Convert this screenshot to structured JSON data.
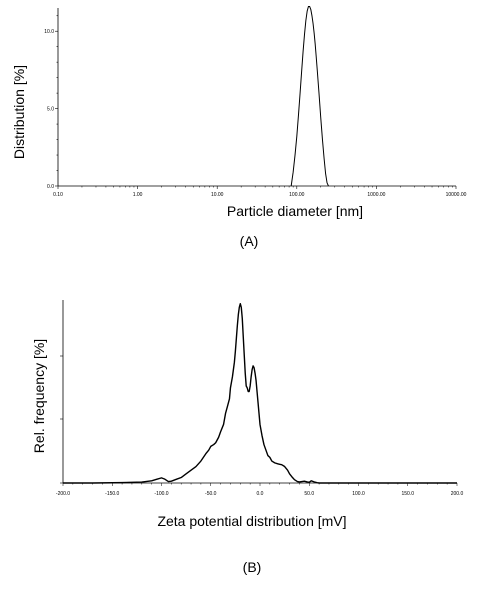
{
  "chart_data": [
    {
      "type": "line",
      "panel_label": "(A)",
      "xlabel": "Particle diameter [nm]",
      "ylabel": "Distribution [%]",
      "xscale": "log",
      "xlim": [
        0.1,
        10000
      ],
      "ylim": [
        0,
        11.5
      ],
      "x_ticks": [
        0.1,
        1,
        10,
        100,
        1000,
        10000
      ],
      "x_tick_labels": [
        "0.10",
        "1.00",
        "10.00",
        "100.00",
        "1000.00",
        "10000.00"
      ],
      "y_ticks": [
        0,
        5,
        10
      ],
      "y_tick_labels": [
        "0.0",
        "5.0",
        "10.0"
      ],
      "grid": false,
      "series": [
        {
          "x": [
            85,
            90,
            95,
            100,
            105,
            110,
            115,
            120,
            125,
            130,
            135,
            140,
            145,
            150,
            155,
            160,
            165,
            170,
            175,
            180,
            190,
            200,
            210,
            220,
            230,
            240,
            250
          ],
          "y": [
            0,
            0.9,
            2.0,
            3.2,
            4.6,
            6.0,
            7.4,
            8.7,
            9.8,
            10.7,
            11.3,
            11.6,
            11.6,
            11.4,
            11.0,
            10.5,
            9.9,
            9.2,
            8.4,
            7.6,
            6.0,
            4.4,
            3.0,
            1.8,
            0.8,
            0.2,
            0
          ]
        }
      ]
    },
    {
      "type": "line",
      "panel_label": "(B)",
      "xlabel": "Zeta potential distribution [mV]",
      "ylabel": "Rel. frequency [%]",
      "xlim": [
        -200,
        200
      ],
      "x_ticks": [
        -200,
        -150,
        -100,
        -50,
        0,
        50,
        100,
        150,
        200
      ],
      "x_tick_labels": [
        "-200.0",
        "-150.0",
        "-100.0",
        "-50.0",
        "0.0",
        "50.0",
        "100.0",
        "150.0",
        "200.0"
      ],
      "y_tick_count": 3,
      "ylim": [
        0,
        1.0
      ],
      "grid": false,
      "series": [
        {
          "x": [
            -200,
            -170,
            -140,
            -120,
            -110,
            -105,
            -100,
            -97,
            -93,
            -90,
            -85,
            -80,
            -75,
            -70,
            -65,
            -60,
            -55,
            -52,
            -50,
            -47,
            -45,
            -42,
            -40,
            -37,
            -35,
            -33,
            -31,
            -30,
            -28,
            -26,
            -25,
            -24,
            -23,
            -22,
            -21,
            -20,
            -19,
            -18,
            -17,
            -16,
            -15,
            -14,
            -13,
            -12,
            -11,
            -10,
            -9,
            -8,
            -7,
            -6,
            -5,
            -4,
            -3,
            -2,
            -1,
            0,
            2,
            4,
            6,
            8,
            10,
            12,
            15,
            18,
            20,
            22,
            25,
            28,
            30,
            33,
            35,
            38,
            40,
            45,
            48,
            50,
            52,
            55,
            58,
            60,
            70,
            100,
            150,
            200
          ],
          "y": [
            0,
            0,
            0.002,
            0.005,
            0.012,
            0.02,
            0.028,
            0.022,
            0.008,
            0.01,
            0.02,
            0.03,
            0.05,
            0.07,
            0.09,
            0.12,
            0.16,
            0.18,
            0.2,
            0.21,
            0.22,
            0.25,
            0.28,
            0.32,
            0.38,
            0.42,
            0.46,
            0.52,
            0.58,
            0.66,
            0.72,
            0.79,
            0.86,
            0.92,
            0.96,
            0.98,
            0.96,
            0.9,
            0.8,
            0.7,
            0.6,
            0.53,
            0.52,
            0.5,
            0.5,
            0.53,
            0.58,
            0.62,
            0.64,
            0.63,
            0.6,
            0.56,
            0.5,
            0.44,
            0.38,
            0.32,
            0.26,
            0.21,
            0.18,
            0.15,
            0.14,
            0.12,
            0.11,
            0.105,
            0.102,
            0.1,
            0.09,
            0.07,
            0.05,
            0.03,
            0.018,
            0.008,
            0.006,
            0.01,
            0.006,
            0.004,
            0.012,
            0.006,
            0.002,
            0,
            0,
            0,
            0,
            0
          ]
        }
      ]
    }
  ]
}
